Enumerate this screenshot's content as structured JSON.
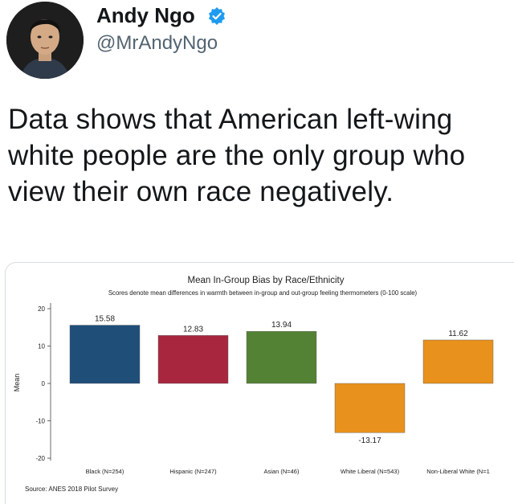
{
  "tweet": {
    "author": {
      "display_name": "Andy Ngo",
      "handle": "@MrAndyNgo",
      "verified": true
    },
    "text": "Data shows that American left-wing\nwhite people are the only group who\nview their own race negatively."
  },
  "chart_data": {
    "type": "bar",
    "title": "Mean In-Group Bias by Race/Ethnicity",
    "subtitle": "Scores denote mean differences in warmth between in-group and out-group feeling thermometers (0-100 scale)",
    "ylabel": "Mean",
    "xlabel": "",
    "ylim": [
      -20,
      20
    ],
    "yticks": [
      20,
      10,
      0,
      -10,
      -20
    ],
    "grid": false,
    "categories": [
      "Black (N=254)",
      "Hispanic (N=247)",
      "Asian (N=46)",
      "White Liberal (N=543)",
      "Non-Liberal White (N=1"
    ],
    "values": [
      15.58,
      12.83,
      13.94,
      -13.17,
      11.62
    ],
    "value_labels": [
      "15.58",
      "12.83",
      "13.94",
      "-13.17",
      "11.62"
    ],
    "colors": [
      "#1f4e79",
      "#a8273f",
      "#548235",
      "#e8911c",
      "#e8911c"
    ],
    "source": "Source: ANES 2018 Pilot Survey"
  }
}
